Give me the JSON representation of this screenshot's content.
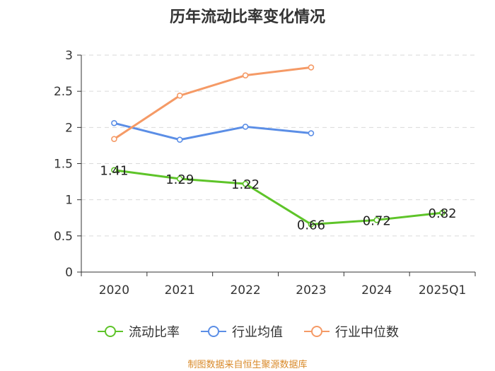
{
  "chart_data": {
    "type": "line",
    "title": "历年流动比率变化情况",
    "categories": [
      "2020",
      "2021",
      "2022",
      "2023",
      "2024",
      "2025Q1"
    ],
    "ylim": [
      0,
      3
    ],
    "yticks": [
      "0",
      "0.5",
      "1",
      "1.5",
      "2",
      "2.5",
      "3"
    ],
    "grid": true,
    "legend_position": "bottom",
    "series": [
      {
        "name": "流动比率",
        "color": "#5ec429",
        "values": [
          1.41,
          1.29,
          1.22,
          0.66,
          0.72,
          0.82
        ],
        "labels": [
          "1.41",
          "1.29",
          "1.22",
          "0.66",
          "0.72",
          "0.82"
        ]
      },
      {
        "name": "行业均值",
        "color": "#5b8ee6",
        "values": [
          2.06,
          1.83,
          2.01,
          1.92,
          null,
          null
        ]
      },
      {
        "name": "行业中位数",
        "color": "#f59a66",
        "values": [
          1.84,
          2.44,
          2.72,
          2.83,
          null,
          null
        ]
      }
    ],
    "source": "制图数据来自恒生聚源数据库"
  }
}
